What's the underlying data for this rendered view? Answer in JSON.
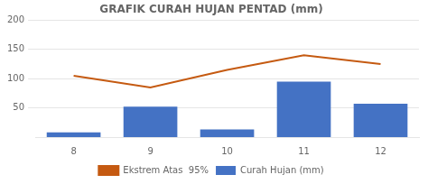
{
  "chart_data": {
    "type": "bar",
    "title": "GRAFIK CURAH HUJAN PENTAD (mm)",
    "categories": [
      8,
      9,
      10,
      11,
      12
    ],
    "series": [
      {
        "name": "Curah Hujan (mm)",
        "type": "bar",
        "color": "#4472C4",
        "values": [
          8,
          52,
          13,
          95,
          57
        ]
      },
      {
        "name": "Ekstrem Atas  95%",
        "type": "line",
        "color": "#C55A11",
        "values": [
          105,
          85,
          115,
          140,
          125
        ]
      }
    ],
    "ylim": [
      0,
      200
    ],
    "yticks": [
      50,
      100,
      150,
      200
    ],
    "grid": true,
    "legend": "bottom"
  }
}
